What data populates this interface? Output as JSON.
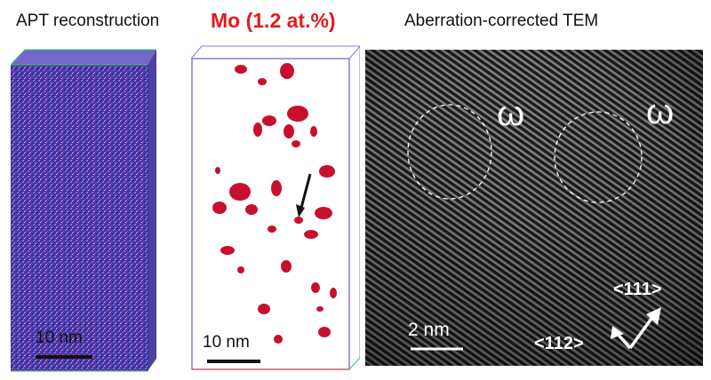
{
  "titles": {
    "apt": "APT reconstruction",
    "mo": "Mo (1.2 at.%)",
    "tem": "Aberration-corrected TEM"
  },
  "scalebars": {
    "apt": "10 nm",
    "mo": "10 nm",
    "tem": "2 nm"
  },
  "tem_labels": {
    "omega_left": "ω",
    "omega_right": "ω",
    "dir_111": "<111>",
    "dir_112": "<112>"
  },
  "colors": {
    "mo_title": "#e21b1b",
    "cluster": "#c8102e",
    "apt_atoms": "#4a3cb0",
    "tem_background": "#2a2a2a"
  }
}
